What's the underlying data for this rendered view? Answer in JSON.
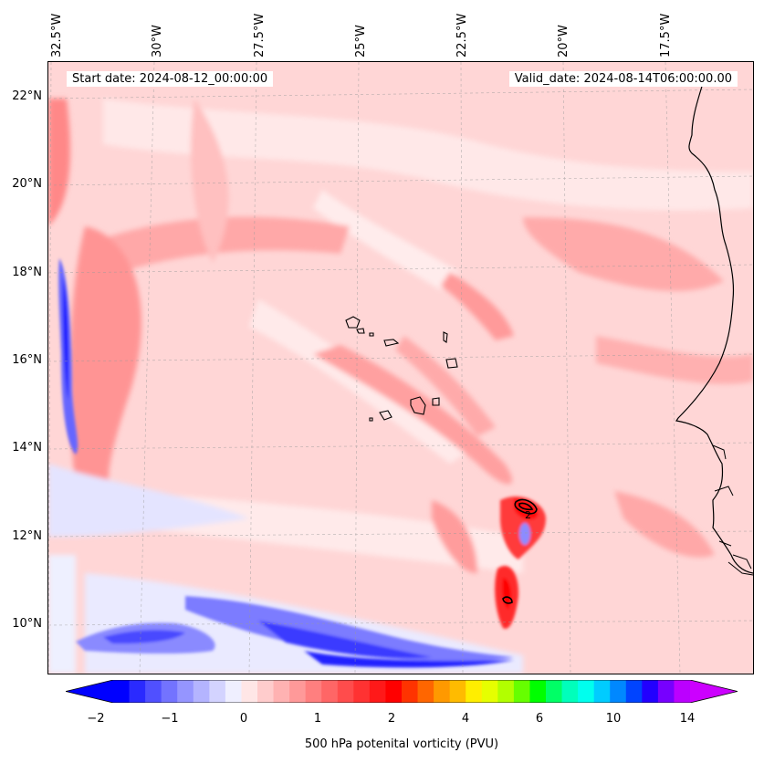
{
  "map": {
    "start_label": "Start date: 2024-08-12_00:00:00",
    "valid_label": "Valid_date: 2024-08-14T06:00:00.00",
    "lon_labels": [
      "32.5°W",
      "30°W",
      "27.5°W",
      "25°W",
      "22.5°W",
      "20°W",
      "17.5°W"
    ],
    "lat_labels": [
      "22°N",
      "20°N",
      "18°N",
      "16°N",
      "14°N",
      "12°N",
      "10°N"
    ],
    "contour_label": "2"
  },
  "colorbar": {
    "label": "500 hPa potenital vorticity (PVU)",
    "ticks": [
      "−2",
      "−1",
      "0",
      "1",
      "2",
      "4",
      "6",
      "10",
      "14"
    ],
    "colors": [
      "#0000ff",
      "#2a2aff",
      "#5050ff",
      "#7373ff",
      "#9595ff",
      "#b4b4ff",
      "#d3d3ff",
      "#efefff",
      "#ffe6e6",
      "#ffcccc",
      "#ffb2b2",
      "#ff9999",
      "#ff7f7f",
      "#ff6666",
      "#ff4c4c",
      "#ff3232",
      "#ff1919",
      "#ff0000",
      "#ff3300",
      "#ff6600",
      "#ff9900",
      "#ffbb00",
      "#ffee00",
      "#e6ff00",
      "#b2ff00",
      "#66ff00",
      "#00ff00",
      "#00ff66",
      "#00ffbb",
      "#00ffee",
      "#00ccff",
      "#0088ff",
      "#0044ff",
      "#2200ff",
      "#7700ff",
      "#bb00ff"
    ],
    "arrow_low_color": "#0000ff",
    "arrow_high_color": "#cc00ff"
  }
}
